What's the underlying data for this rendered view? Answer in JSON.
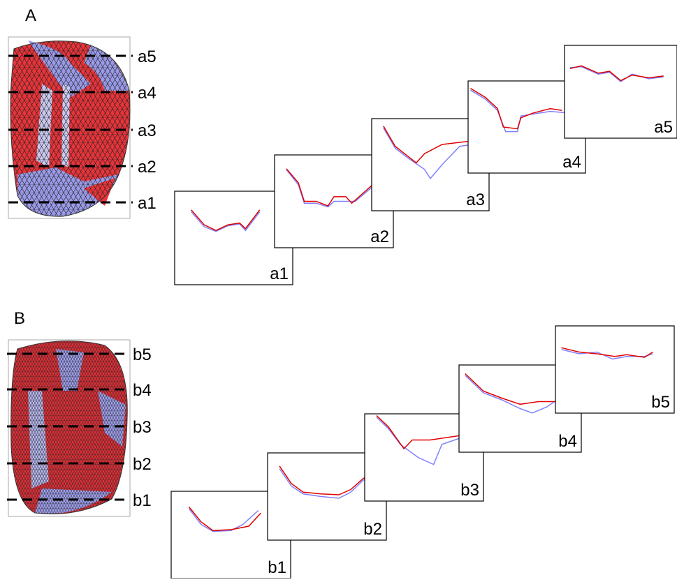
{
  "panels": [
    {
      "label": "A",
      "cuts": [
        "a1",
        "a2",
        "a3",
        "a4",
        "a5"
      ]
    },
    {
      "label": "B",
      "cuts": [
        "b1",
        "b2",
        "b3",
        "b4",
        "b5"
      ]
    }
  ]
}
